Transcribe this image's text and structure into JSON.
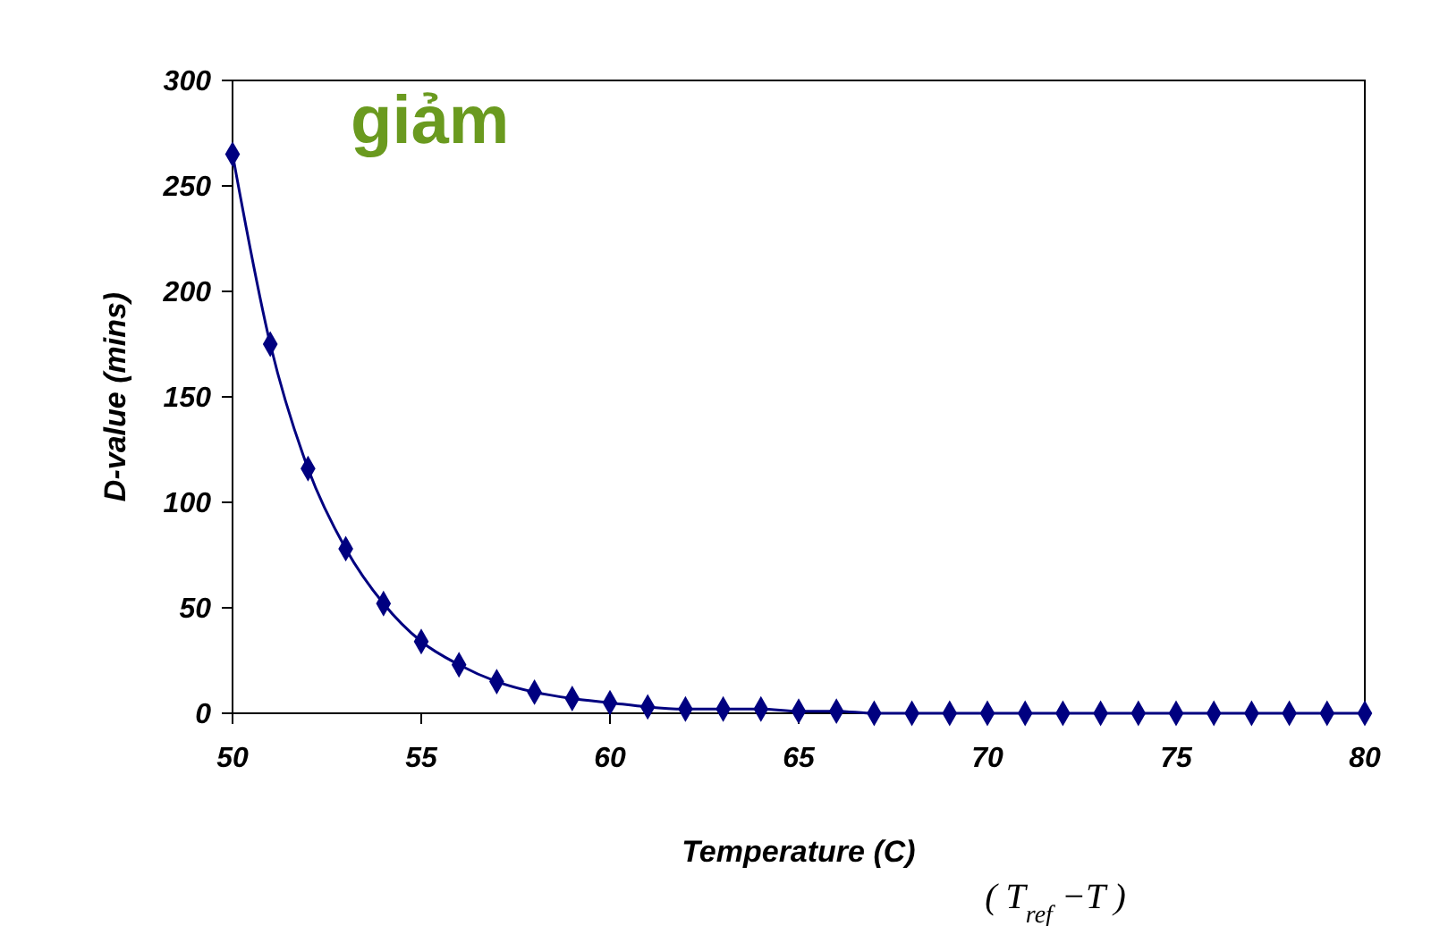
{
  "chart_data": {
    "type": "line",
    "title": "giảm",
    "xlabel": "Temperature (C)",
    "ylabel": "D-value (mins)",
    "annotations": [
      "( T$_{ref}$ −T )"
    ],
    "x": [
      50,
      51,
      52,
      53,
      54,
      55,
      56,
      57,
      58,
      59,
      60,
      61,
      62,
      63,
      64,
      65,
      66,
      67,
      68,
      69,
      70,
      71,
      72,
      73,
      74,
      75,
      76,
      77,
      78,
      79,
      80
    ],
    "series": [
      {
        "color": "#000080",
        "values": [
          265,
          175,
          116,
          78,
          52,
          34,
          23,
          15,
          10,
          7,
          5,
          3,
          2,
          2,
          2,
          1,
          1,
          0,
          0,
          0,
          0,
          0,
          0,
          0,
          0,
          0,
          0,
          0,
          0,
          0,
          0
        ]
      }
    ],
    "xlim": [
      50,
      80
    ],
    "xticks": [
      50,
      55,
      60,
      65,
      70,
      75,
      80
    ],
    "ylim": [
      0,
      300
    ],
    "yticks": [
      0,
      50,
      100,
      150,
      200,
      250,
      300
    ],
    "grid": false,
    "marker": "diamond",
    "line_style": "solid"
  }
}
